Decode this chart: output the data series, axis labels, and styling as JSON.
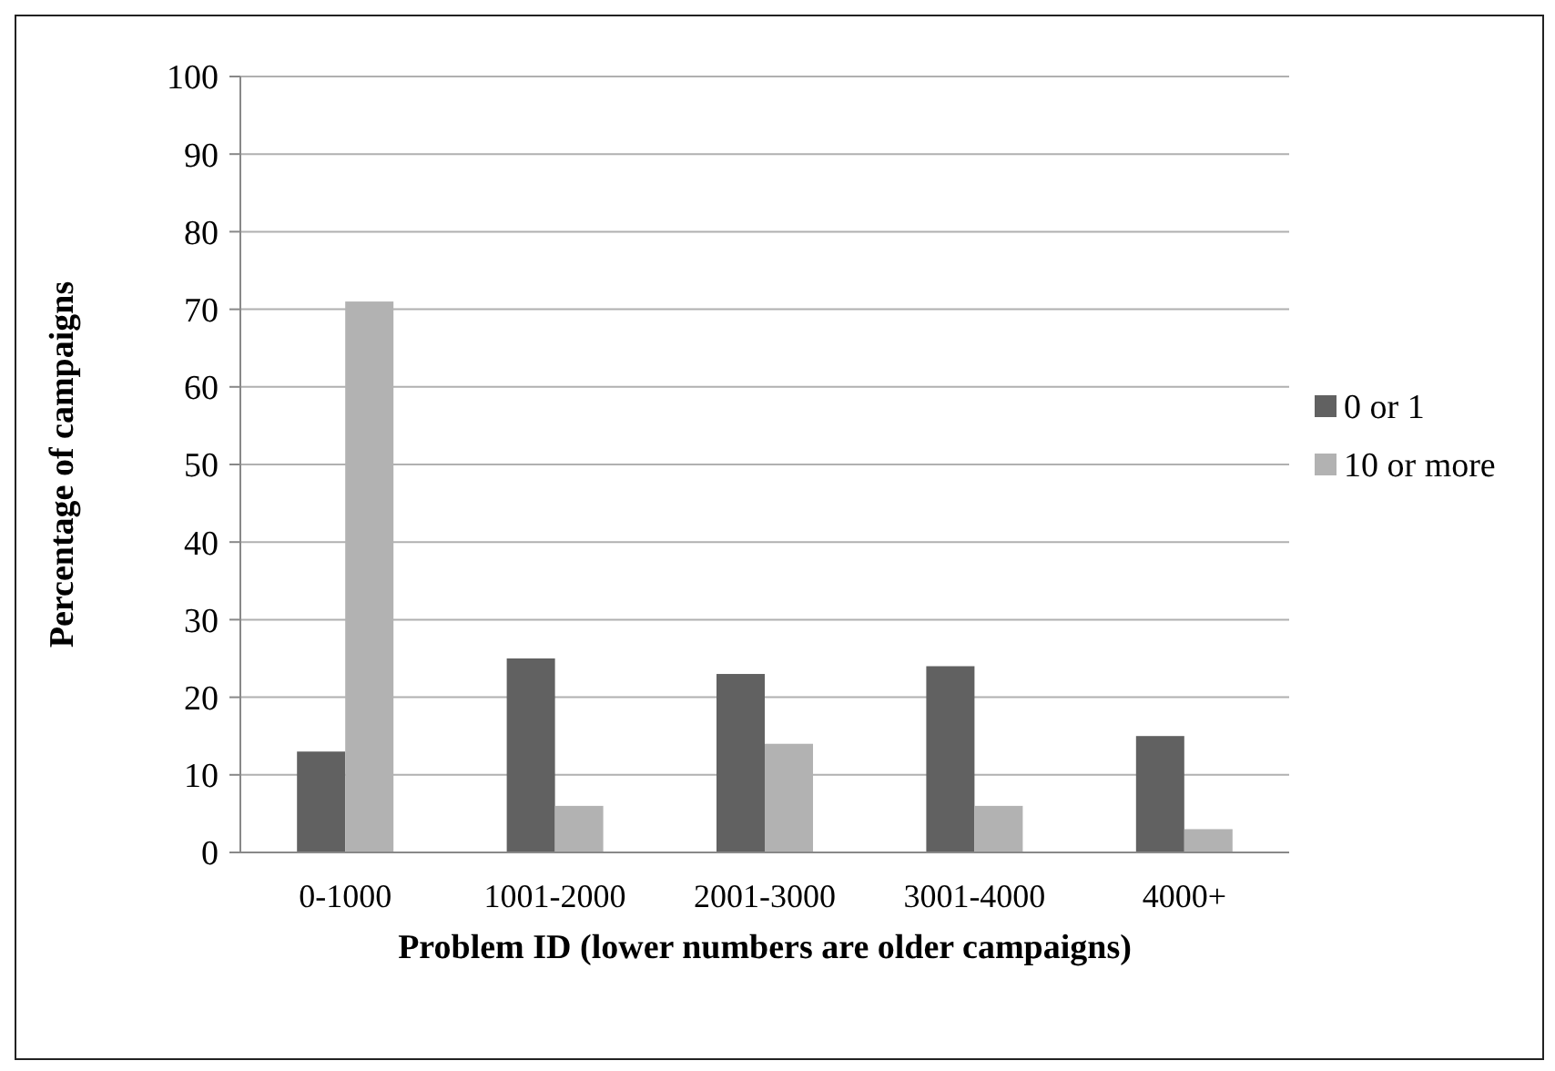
{
  "chart_data": {
    "type": "bar",
    "xlabel": "Problem ID (lower numbers are older campaigns)",
    "ylabel": "Percentage of campaigns",
    "categories": [
      "0-1000",
      "1001-2000",
      "2001-3000",
      "3001-4000",
      "4000+"
    ],
    "series": [
      {
        "name": "0 or 1",
        "color": "#616161",
        "values": [
          13,
          25,
          23,
          24,
          15
        ]
      },
      {
        "name": "10 or more",
        "color": "#b2b2b2",
        "values": [
          71,
          6,
          14,
          6,
          3
        ]
      }
    ],
    "ylim": [
      0,
      100
    ],
    "yticks": [
      0,
      10,
      20,
      30,
      40,
      50,
      60,
      70,
      80,
      90,
      100
    ],
    "grid": "y",
    "legend": "right"
  }
}
